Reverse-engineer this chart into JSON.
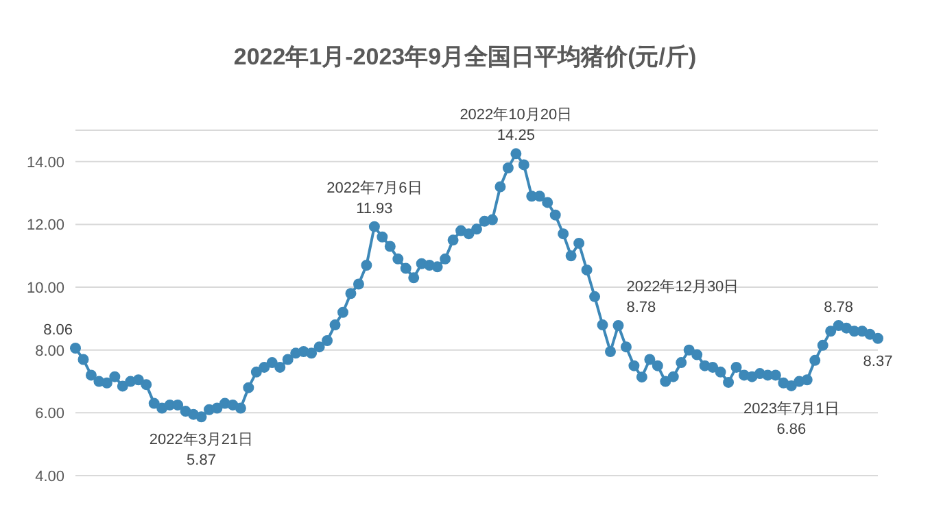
{
  "chart_data": {
    "type": "line",
    "title": "2022年1月-2023年9月全国日平均猪价(元/斤)",
    "categories": [
      null,
      null,
      null,
      null,
      null,
      null,
      null,
      null,
      null,
      null,
      null,
      null,
      null,
      null,
      null,
      null,
      null,
      null,
      null,
      null,
      null,
      null,
      null,
      null,
      null,
      null,
      null,
      null,
      null,
      null,
      null,
      null,
      null,
      null,
      null,
      null,
      null,
      null,
      null,
      null,
      null,
      null,
      null,
      null,
      null,
      null,
      null,
      null,
      null,
      null,
      null,
      null,
      null,
      null,
      null,
      null,
      null,
      null,
      null,
      null,
      null,
      null,
      null,
      null,
      null,
      null,
      null,
      null,
      null,
      null,
      null,
      null,
      null,
      null,
      null,
      null,
      null,
      null,
      null,
      null,
      null,
      null,
      null,
      null,
      null,
      null,
      null,
      null,
      null,
      null,
      null,
      null,
      null,
      null,
      null,
      null,
      null,
      null,
      null,
      null,
      null,
      null,
      null
    ],
    "series": [
      {
        "color": "#3d88b8",
        "values": [
          8.06,
          7.7,
          7.2,
          7.0,
          6.95,
          7.15,
          6.85,
          7.0,
          7.05,
          6.9,
          6.3,
          6.15,
          6.25,
          6.25,
          6.05,
          5.95,
          5.87,
          6.1,
          6.15,
          6.3,
          6.25,
          6.15,
          6.8,
          7.3,
          7.45,
          7.6,
          7.45,
          7.7,
          7.9,
          7.95,
          7.9,
          8.1,
          8.3,
          8.8,
          9.2,
          9.8,
          10.1,
          10.7,
          11.93,
          11.6,
          11.3,
          10.9,
          10.6,
          10.3,
          10.75,
          10.7,
          10.65,
          10.9,
          11.5,
          11.8,
          11.7,
          11.85,
          12.1,
          12.15,
          13.2,
          13.8,
          14.25,
          13.9,
          12.9,
          12.9,
          12.7,
          12.3,
          11.7,
          11.0,
          11.4,
          10.55,
          9.7,
          8.8,
          7.95,
          8.78,
          8.1,
          7.5,
          7.14,
          7.7,
          7.5,
          7.0,
          7.15,
          7.6,
          8.0,
          7.85,
          7.5,
          7.45,
          7.3,
          6.97,
          7.45,
          7.2,
          7.15,
          7.25,
          7.2,
          7.2,
          6.95,
          6.86,
          7.0,
          7.05,
          7.67,
          8.15,
          8.6,
          8.78,
          8.7,
          8.6,
          8.6,
          8.5,
          8.37
        ],
        "value_labels": [
          "8.06",
          null,
          null,
          null,
          null,
          null,
          null,
          null,
          null,
          null,
          null,
          null,
          null,
          null,
          null,
          null,
          "2022年3月21日\n5.87",
          null,
          null,
          null,
          null,
          null,
          null,
          null,
          null,
          null,
          null,
          null,
          null,
          null,
          null,
          null,
          null,
          null,
          null,
          null,
          null,
          null,
          "2022年7月6日\n11.93",
          null,
          null,
          null,
          null,
          null,
          null,
          null,
          null,
          null,
          null,
          null,
          null,
          null,
          null,
          null,
          null,
          null,
          "2022年10月20日\n14.25",
          null,
          null,
          null,
          null,
          null,
          null,
          null,
          null,
          null,
          null,
          null,
          null,
          "2022年12月30日\n8.78",
          null,
          null,
          null,
          null,
          null,
          null,
          null,
          null,
          null,
          null,
          null,
          null,
          null,
          null,
          null,
          null,
          null,
          null,
          null,
          null,
          null,
          "2023年7月1日\n6.86",
          null,
          null,
          null,
          null,
          null,
          "8.78",
          null,
          null,
          null,
          null,
          "8.37"
        ]
      }
    ],
    "ylim": [
      4,
      15
    ],
    "yticks": [
      {
        "value": 4,
        "label": "4.00"
      },
      {
        "value": 6,
        "label": "6.00"
      },
      {
        "value": 8,
        "label": "8.00"
      },
      {
        "value": 10,
        "label": "10.00"
      },
      {
        "value": 12,
        "label": "12.00"
      },
      {
        "value": 14,
        "label": "14.00"
      }
    ],
    "tick_labels": "y",
    "grid": "y",
    "marker": "circle",
    "line_style": "solid"
  }
}
